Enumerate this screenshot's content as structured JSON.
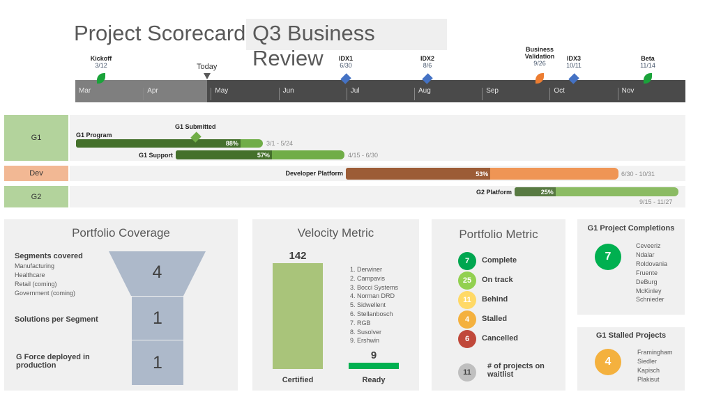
{
  "header": {
    "title": "Project Scorecard",
    "subtitle": "Q3 Business Review"
  },
  "timeline": {
    "today_label": "Today",
    "months": [
      "Mar",
      "Apr",
      "May",
      "Jun",
      "Jul",
      "Aug",
      "Sep",
      "Oct",
      "Nov"
    ],
    "milestones": [
      {
        "name": "Kickoff",
        "date": "3/12",
        "shape": "leaf",
        "color": "#1aa33a"
      },
      {
        "name": "IDX1",
        "date": "6/30",
        "shape": "diamond",
        "color": "#4472c4"
      },
      {
        "name": "IDX2",
        "date": "8/6",
        "shape": "diamond",
        "color": "#4472c4"
      },
      {
        "name": "Business Validation",
        "date": "9/26",
        "shape": "leaf",
        "color": "#ed7d31"
      },
      {
        "name": "IDX3",
        "date": "10/11",
        "shape": "diamond",
        "color": "#4472c4"
      },
      {
        "name": "Beta",
        "date": "11/14",
        "shape": "leaf",
        "color": "#1aa33a"
      }
    ]
  },
  "lanes": {
    "g1": {
      "label": "G1",
      "milestone": "G1 Submitted",
      "tasks": [
        {
          "name": "G1 Program",
          "progress": "88%",
          "dates": "3/1 - 5/24"
        },
        {
          "name": "G1 Support",
          "progress": "57%",
          "dates": "4/15 - 6/30"
        }
      ]
    },
    "dev": {
      "label": "Dev",
      "tasks": [
        {
          "name": "Developer Platform",
          "progress": "53%",
          "dates": "6/30 - 10/31"
        }
      ]
    },
    "g2": {
      "label": "G2",
      "tasks": [
        {
          "name": "G2 Platform",
          "progress": "25%",
          "dates": "9/15 - 11/27"
        }
      ]
    }
  },
  "coverage": {
    "title": "Portfolio Coverage",
    "segments_label": "Segments covered",
    "segments": [
      "Manufacturing",
      "Healthcare",
      "Retail (coming)",
      "Government  (coming)"
    ],
    "segments_value": "4",
    "solutions_label": "Solutions per Segment",
    "solutions_value": "1",
    "deployed_label": "G Force deployed in production",
    "deployed_value": "1"
  },
  "velocity": {
    "title": "Velocity Metric",
    "certified_value": "142",
    "certified_label": "Certified",
    "ready_value": "9",
    "ready_label": "Ready",
    "list": [
      "1. Derwiner",
      "2. Campavis",
      "3. Bocci Systems",
      "4. Norman DRD",
      "5. Sidwellent",
      "6. Stellanbosch",
      "7. RGB",
      "8. Susolver",
      "9. Ershwin"
    ]
  },
  "portfolio": {
    "title": "Portfolio Metric",
    "items": [
      {
        "value": "7",
        "label": "Complete",
        "color": "#00a650"
      },
      {
        "value": "25",
        "label": "On track",
        "color": "#92d050"
      },
      {
        "value": "11",
        "label": "Behind",
        "color": "#ffd966"
      },
      {
        "value": "4",
        "label": "Stalled",
        "color": "#f4b13e"
      },
      {
        "value": "6",
        "label": "Cancelled",
        "color": "#c0483a"
      }
    ],
    "waitlist": {
      "value": "11",
      "label": "# of projects on waitlist",
      "color": "#bfbfbf"
    }
  },
  "completions": {
    "title": "G1 Project Completions",
    "value": "7",
    "color": "#00b050",
    "list": [
      "Ceveeriz",
      "Ndalar",
      "Roldovania",
      "Fruente",
      "DeBurg",
      "McKinley",
      "Schnieder"
    ]
  },
  "stalled": {
    "title": "G1 Stalled Projects",
    "value": "4",
    "color": "#f4b13e",
    "list": [
      "Framingham",
      "Siedler",
      "Kapisch",
      "Plakisut"
    ]
  }
}
